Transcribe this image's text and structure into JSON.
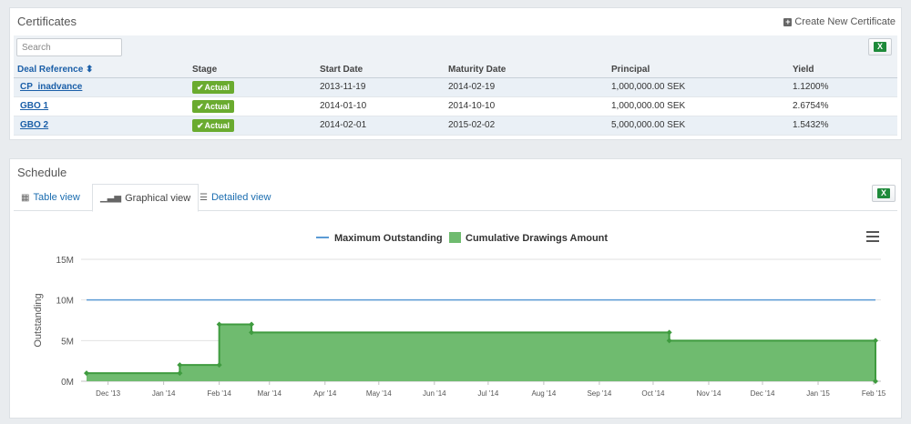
{
  "certificates": {
    "title": "Certificates",
    "create_label": "Create New Certificate",
    "search_placeholder": "Search",
    "columns": [
      "Deal Reference ⬍",
      "Stage",
      "Start Date",
      "Maturity Date",
      "Principal",
      "Yield"
    ],
    "rows": [
      {
        "deal": "CP_inadvance",
        "stage": "Actual",
        "start": "2013-11-19",
        "maturity": "2014-02-19",
        "principal": "1,000,000.00 SEK",
        "yield": "1.1200%"
      },
      {
        "deal": "GBO 1",
        "stage": "Actual",
        "start": "2014-01-10",
        "maturity": "2014-10-10",
        "principal": "1,000,000.00 SEK",
        "yield": "2.6754%"
      },
      {
        "deal": "GBO 2",
        "stage": "Actual",
        "start": "2014-02-01",
        "maturity": "2015-02-02",
        "principal": "5,000,000.00 SEK",
        "yield": "1.5432%"
      }
    ]
  },
  "schedule": {
    "title": "Schedule",
    "tabs": [
      {
        "label": "Table view",
        "icon": "table-icon"
      },
      {
        "label": "Graphical view",
        "icon": "bar-chart-icon"
      },
      {
        "label": "Detailed view",
        "icon": "list-icon"
      }
    ],
    "active_tab": "Graphical view"
  },
  "colors": {
    "accent": "#1b6db0",
    "badge": "#6aab2f",
    "area": "#6fbb6f",
    "area_line": "#3f9b3f",
    "max_line": "#5b9bd5"
  },
  "chart_data": {
    "type": "area",
    "ylabel": "Outstanding",
    "ylim": [
      0,
      15000000
    ],
    "yticks": [
      {
        "v": 0,
        "label": "0M"
      },
      {
        "v": 5000000,
        "label": "5M"
      },
      {
        "v": 10000000,
        "label": "10M"
      },
      {
        "v": 15000000,
        "label": "15M"
      }
    ],
    "xlim": [
      "2013-11-19",
      "2015-02-02"
    ],
    "xticks": [
      {
        "d": "2013-12-01",
        "label": "Dec '13"
      },
      {
        "d": "2014-01-01",
        "label": "Jan '14"
      },
      {
        "d": "2014-02-01",
        "label": "Feb '14"
      },
      {
        "d": "2014-03-01",
        "label": "Mar '14"
      },
      {
        "d": "2014-04-01",
        "label": "Apr '14"
      },
      {
        "d": "2014-05-01",
        "label": "May '14"
      },
      {
        "d": "2014-06-01",
        "label": "Jun '14"
      },
      {
        "d": "2014-07-01",
        "label": "Jul '14"
      },
      {
        "d": "2014-08-01",
        "label": "Aug '14"
      },
      {
        "d": "2014-09-01",
        "label": "Sep '14"
      },
      {
        "d": "2014-10-01",
        "label": "Oct '14"
      },
      {
        "d": "2014-11-01",
        "label": "Nov '14"
      },
      {
        "d": "2014-12-01",
        "label": "Dec '14"
      },
      {
        "d": "2015-01-01",
        "label": "Jan '15"
      },
      {
        "d": "2015-02-01",
        "label": "Feb '15"
      }
    ],
    "legend": [
      "Maximum Outstanding",
      "Cumulative Drawings Amount"
    ],
    "legend_position": "top-center",
    "series": [
      {
        "name": "Maximum Outstanding",
        "kind": "line",
        "points": [
          {
            "d": "2013-11-19",
            "y": 10000000
          },
          {
            "d": "2015-02-02",
            "y": 10000000
          }
        ]
      },
      {
        "name": "Cumulative Drawings Amount",
        "kind": "step-area",
        "points": [
          {
            "d": "2013-11-19",
            "y": 1000000
          },
          {
            "d": "2014-01-10",
            "y": 1000000
          },
          {
            "d": "2014-01-10",
            "y": 2000000
          },
          {
            "d": "2014-02-01",
            "y": 2000000
          },
          {
            "d": "2014-02-01",
            "y": 7000000
          },
          {
            "d": "2014-02-19",
            "y": 7000000
          },
          {
            "d": "2014-02-19",
            "y": 6000000
          },
          {
            "d": "2014-10-10",
            "y": 6000000
          },
          {
            "d": "2014-10-10",
            "y": 5000000
          },
          {
            "d": "2015-02-02",
            "y": 5000000
          },
          {
            "d": "2015-02-02",
            "y": 0
          }
        ]
      }
    ]
  }
}
